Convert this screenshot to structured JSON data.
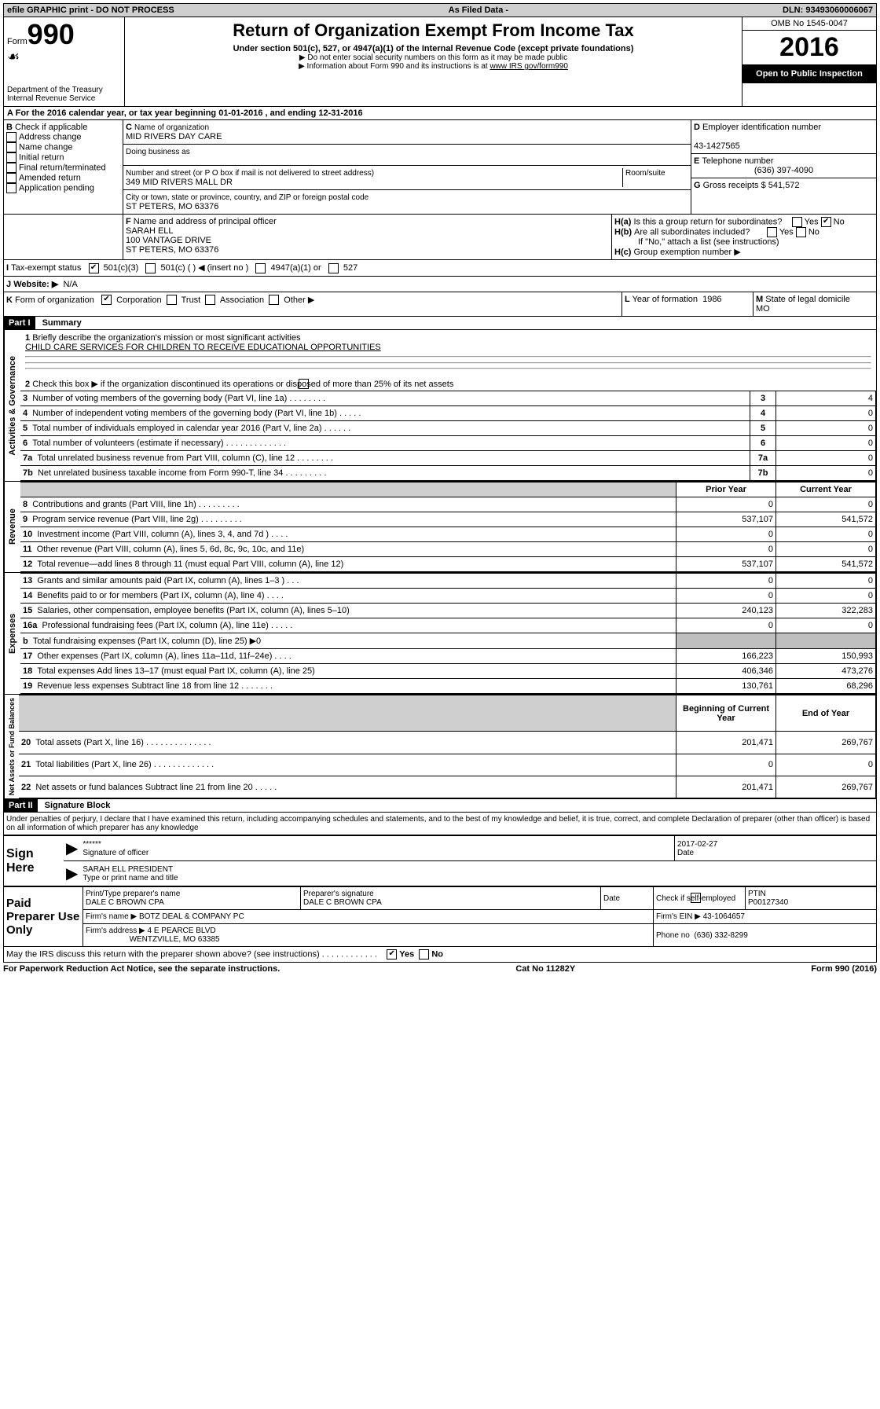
{
  "topbar": {
    "left": "efile GRAPHIC print - DO NOT PROCESS",
    "mid": "As Filed Data -",
    "right": "DLN: 93493060006067"
  },
  "header": {
    "form_label": "Form",
    "form_no": "990",
    "dept": "Department of the Treasury",
    "irs": "Internal Revenue Service",
    "title": "Return of Organization Exempt From Income Tax",
    "sub": "Under section 501(c), 527, or 4947(a)(1) of the Internal Revenue Code (except private foundations)",
    "note1": "▶ Do not enter social security numbers on this form as it may be made public",
    "note2": "▶ Information about Form 990 and its instructions is at ",
    "note2_link": "www IRS gov/form990",
    "omb": "OMB No 1545-0047",
    "year": "2016",
    "otp": "Open to Public Inspection"
  },
  "A": {
    "text": "For the 2016 calendar year, or tax year beginning 01-01-2016   , and ending 12-31-2016"
  },
  "B": {
    "label": "Check if applicable",
    "items": [
      "Address change",
      "Name change",
      "Initial return",
      "Final return/terminated",
      "Amended return",
      "Application pending"
    ]
  },
  "C": {
    "label": "Name of organization",
    "org": "MID RIVERS DAY CARE",
    "dba_label": "Doing business as",
    "addr_label": "Number and street (or P O  box if mail is not delivered to street address)",
    "room": "Room/suite",
    "addr": "349 MID RIVERS MALL DR",
    "city_label": "City or town, state or province, country, and ZIP or foreign postal code",
    "city": "ST PETERS, MO  63376"
  },
  "D": {
    "label": "Employer identification number",
    "ein": "43-1427565"
  },
  "E": {
    "label": "Telephone number",
    "phone": "(636) 397-4090"
  },
  "G": {
    "label": "Gross receipts $",
    "amt": "541,572"
  },
  "F": {
    "label": "Name and address of principal officer",
    "name": "SARAH ELL",
    "addr1": "100 VANTAGE DRIVE",
    "addr2": "ST PETERS, MO  63376"
  },
  "H": {
    "a": "Is this a group return for subordinates?",
    "b": "Are all subordinates included?",
    "b_note": "If \"No,\" attach a list  (see instructions)",
    "c": "Group exemption number ▶",
    "yes": "Yes",
    "no": "No"
  },
  "I": {
    "label": "Tax-exempt status",
    "o1": "501(c)(3)",
    "o2": "501(c) (   ) ◀ (insert no )",
    "o3": "4947(a)(1) or",
    "o4": "527"
  },
  "J": {
    "label": "Website: ▶",
    "val": "N/A"
  },
  "K": {
    "label": "Form of organization",
    "o1": "Corporation",
    "o2": "Trust",
    "o3": "Association",
    "o4": "Other ▶"
  },
  "L": {
    "label": "Year of formation",
    "val": "1986"
  },
  "M": {
    "label": "State of legal domicile",
    "val": "MO"
  },
  "partI": {
    "hdr": "Part I",
    "title": "Summary",
    "l1": "Briefly describe the organization's mission or most significant activities",
    "l1v": "CHILD CARE SERVICES FOR CHILDREN TO RECEIVE EDUCATIONAL OPPORTUNITIES",
    "l2": "Check this box ▶        if the organization discontinued its operations or disposed of more than 25% of its net assets",
    "rows_ag": [
      {
        "n": "3",
        "t": "Number of voting members of the governing body (Part VI, line 1a)  .   .   .   .   .   .   .   .",
        "v": "4"
      },
      {
        "n": "4",
        "t": "Number of independent voting members of the governing body (Part VI, line 1b)   .   .   .   .   .",
        "v": "0"
      },
      {
        "n": "5",
        "t": "Total number of individuals employed in calendar year 2016 (Part V, line 2a)   .   .   .   .   .   .",
        "v": "0"
      },
      {
        "n": "6",
        "t": "Total number of volunteers (estimate if necessary)   .   .   .   .   .   .   .   .   .   .   .   .   .",
        "v": "0"
      },
      {
        "n": "7a",
        "t": "Total unrelated business revenue from Part VIII, column (C), line 12   .   .   .   .   .   .   .   .",
        "v": "0"
      },
      {
        "n": "7b",
        "t": "Net unrelated business taxable income from Form 990-T, line 34   .   .   .   .   .   .   .   .   .",
        "v": "0"
      }
    ],
    "col_prior": "Prior Year",
    "col_curr": "Current Year",
    "rev": [
      {
        "n": "8",
        "t": "Contributions and grants (Part VIII, line 1h)   .   .   .   .   .   .   .   .   .",
        "p": "0",
        "c": "0"
      },
      {
        "n": "9",
        "t": "Program service revenue (Part VIII, line 2g)   .   .   .   .   .   .   .   .   .",
        "p": "537,107",
        "c": "541,572"
      },
      {
        "n": "10",
        "t": "Investment income (Part VIII, column (A), lines 3, 4, and 7d )   .   .   .   .",
        "p": "0",
        "c": "0"
      },
      {
        "n": "11",
        "t": "Other revenue (Part VIII, column (A), lines 5, 6d, 8c, 9c, 10c, and 11e)",
        "p": "0",
        "c": "0"
      },
      {
        "n": "12",
        "t": "Total revenue—add lines 8 through 11 (must equal Part VIII, column (A), line 12)",
        "p": "537,107",
        "c": "541,572"
      }
    ],
    "exp": [
      {
        "n": "13",
        "t": "Grants and similar amounts paid (Part IX, column (A), lines 1–3 )   .   .   .",
        "p": "0",
        "c": "0"
      },
      {
        "n": "14",
        "t": "Benefits paid to or for members (Part IX, column (A), line 4)   .   .   .   .",
        "p": "0",
        "c": "0"
      },
      {
        "n": "15",
        "t": "Salaries, other compensation, employee benefits (Part IX, column (A), lines 5–10)",
        "p": "240,123",
        "c": "322,283"
      },
      {
        "n": "16a",
        "t": "Professional fundraising fees (Part IX, column (A), line 11e)   .   .   .   .   .",
        "p": "0",
        "c": "0"
      },
      {
        "n": "b",
        "t": "Total fundraising expenses (Part IX, column (D), line 25) ▶0",
        "p": "",
        "c": "",
        "shade": true
      },
      {
        "n": "17",
        "t": "Other expenses (Part IX, column (A), lines 11a–11d, 11f–24e)   .   .   .   .",
        "p": "166,223",
        "c": "150,993"
      },
      {
        "n": "18",
        "t": "Total expenses  Add lines 13–17 (must equal Part IX, column (A), line 25)",
        "p": "406,346",
        "c": "473,276"
      },
      {
        "n": "19",
        "t": "Revenue less expenses  Subtract line 18 from line 12   .   .   .   .   .   .   .",
        "p": "130,761",
        "c": "68,296"
      }
    ],
    "col_beg": "Beginning of Current Year",
    "col_end": "End of Year",
    "na": [
      {
        "n": "20",
        "t": "Total assets (Part X, line 16)   .   .   .   .   .   .   .   .   .   .   .   .   .   .",
        "p": "201,471",
        "c": "269,767"
      },
      {
        "n": "21",
        "t": "Total liabilities (Part X, line 26)   .   .   .   .   .   .   .   .   .   .   .   .   .",
        "p": "0",
        "c": "0"
      },
      {
        "n": "22",
        "t": "Net assets or fund balances  Subtract line 21 from line 20   .   .   .   .   .",
        "p": "201,471",
        "c": "269,767"
      }
    ],
    "vlab_ag": "Activities & Governance",
    "vlab_rev": "Revenue",
    "vlab_exp": "Expenses",
    "vlab_na": "Net Assets or Fund Balances"
  },
  "partII": {
    "hdr": "Part II",
    "title": "Signature Block",
    "perjury": "Under penalties of perjury, I declare that I have examined this return, including accompanying schedules and statements, and to the best of my knowledge and belief, it is true, correct, and complete  Declaration of preparer (other than officer) is based on all information of which preparer has any knowledge",
    "sign_here": "Sign Here",
    "stars": "******",
    "sig_of": "Signature of officer",
    "date": "2017-02-27",
    "date_lbl": "Date",
    "name_title": "SARAH ELL PRESIDENT",
    "type_lbl": "Type or print name and title",
    "paid": "Paid Preparer Use Only",
    "prep_name_lbl": "Print/Type preparer's name",
    "prep_name": "DALE C BROWN CPA",
    "prep_sig_lbl": "Preparer's signature",
    "prep_sig": "DALE C BROWN CPA",
    "check_if": "Check        if self-employed",
    "ptin_lbl": "PTIN",
    "ptin": "P00127340",
    "firm_name_lbl": "Firm's name    ▶",
    "firm_name": "BOTZ DEAL & COMPANY PC",
    "firm_ein_lbl": "Firm's EIN ▶",
    "firm_ein": "43-1064657",
    "firm_addr_lbl": "Firm's address ▶",
    "firm_addr": "4 E PEARCE BLVD",
    "firm_city": "WENTZVILLE, MO  63385",
    "phone_lbl": "Phone no",
    "phone": "(636) 332-8299",
    "discuss": "May the IRS discuss this return with the preparer shown above? (see instructions)   .   .   .   .   .   .   .   .   .   .   .   .",
    "yes": "Yes",
    "no": "No"
  },
  "footer": {
    "left": "For Paperwork Reduction Act Notice, see the separate instructions.",
    "mid": "Cat  No  11282Y",
    "right": "Form 990 (2016)"
  }
}
